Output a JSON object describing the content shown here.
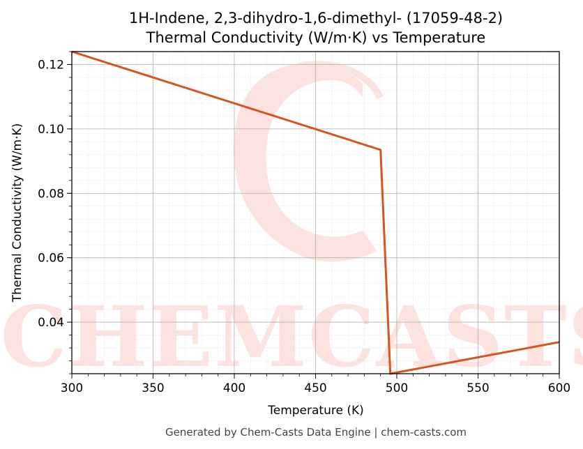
{
  "chart_data": {
    "type": "line",
    "title_line1": "1H-Indene, 2,3-dihydro-1,6-dimethyl- (17059-48-2)",
    "title_line2": "Thermal Conductivity (W/m·K) vs Temperature",
    "xlabel": "Temperature (K)",
    "ylabel": "Thermal Conductivity (W/m·K)",
    "xlim": [
      300,
      600
    ],
    "ylim": [
      0.024,
      0.124
    ],
    "xticks": [
      300,
      350,
      400,
      450,
      500,
      550,
      600
    ],
    "xtick_labels": [
      "300",
      "350",
      "400",
      "450",
      "500",
      "550",
      "600"
    ],
    "yticks": [
      0.04,
      0.06,
      0.08,
      0.1,
      0.12
    ],
    "ytick_labels": [
      "0.04",
      "0.06",
      "0.08",
      "0.10",
      "0.12"
    ],
    "grid": true,
    "series": [
      {
        "color": "#d9531e",
        "x": [
          300,
          490,
          496,
          600
        ],
        "y": [
          0.124,
          0.0935,
          0.024,
          0.0338
        ]
      }
    ]
  },
  "watermark": {
    "text": "CHEMCASTS",
    "color": "#fde3df"
  },
  "footer": "Generated by Chem-Casts Data Engine | chem-casts.com"
}
